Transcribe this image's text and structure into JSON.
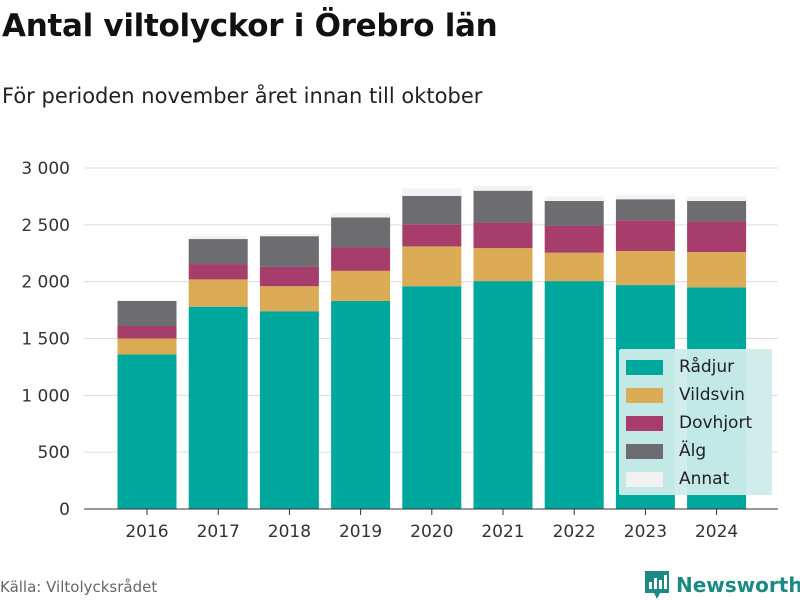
{
  "title": "Antal viltolyckor i Örebro län",
  "subtitle": "För perioden november året innan till oktober",
  "source": "Källa: Viltolycksrådet",
  "brand": "Newsworthy",
  "colors": {
    "Rådjur": "#00a79d",
    "Vildsvin": "#dbab55",
    "Dovhjort": "#a63d6a",
    "Älg": "#6d6d71",
    "Annat": "#f2f2f2"
  },
  "chart_data": {
    "type": "bar",
    "stacked": true,
    "categories": [
      "2016",
      "2017",
      "2018",
      "2019",
      "2020",
      "2021",
      "2022",
      "2023",
      "2024"
    ],
    "series": [
      {
        "name": "Rådjur",
        "values": [
          1360,
          1780,
          1740,
          1830,
          1960,
          2005,
          2005,
          1970,
          1950
        ]
      },
      {
        "name": "Vildsvin",
        "values": [
          140,
          240,
          220,
          265,
          350,
          290,
          250,
          300,
          310
        ]
      },
      {
        "name": "Dovhjort",
        "values": [
          110,
          135,
          170,
          205,
          195,
          225,
          235,
          270,
          270
        ]
      },
      {
        "name": "Älg",
        "values": [
          220,
          220,
          270,
          265,
          250,
          280,
          220,
          185,
          180
        ]
      },
      {
        "name": "Annat",
        "values": [
          10,
          25,
          20,
          40,
          65,
          40,
          40,
          40,
          40
        ]
      }
    ],
    "yticks": [
      0,
      500,
      1000,
      1500,
      2000,
      2500,
      3000
    ],
    "ytick_labels": [
      "0",
      "500",
      "1 000",
      "1 500",
      "2 000",
      "2 500",
      "3 000"
    ],
    "ylim": [
      0,
      3000
    ],
    "grid": true,
    "legend_position": "bottom-right"
  }
}
